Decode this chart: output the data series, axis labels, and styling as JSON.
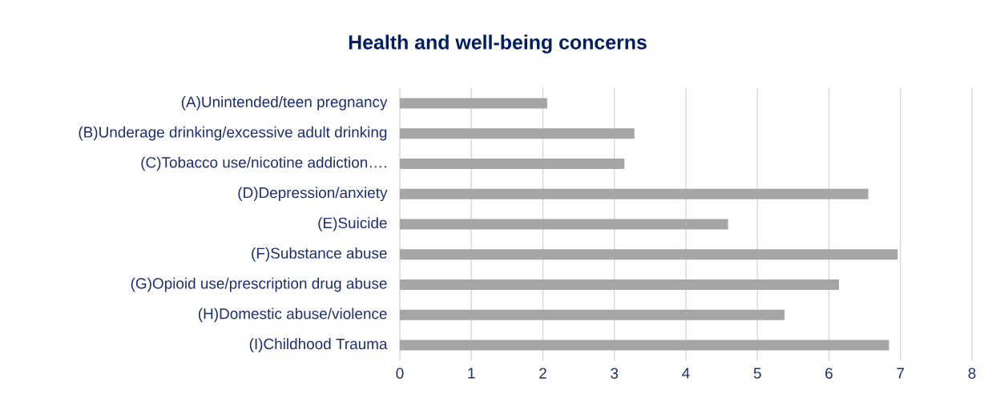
{
  "chart_data": {
    "type": "bar",
    "orientation": "horizontal",
    "title": "Health and well-being concerns",
    "categories": [
      "(A)Unintended/teen pregnancy",
      "(B)Underage drinking/excessive adult drinking",
      "(C)Tobacco use/nicotine addiction….",
      "(D)Depression/anxiety",
      "(E)Suicide",
      "(F)Substance abuse",
      "(G)Opioid use/prescription drug abuse",
      "(H)Domestic abuse/violence",
      "(I)Childhood Trauma"
    ],
    "values": [
      2.06,
      3.28,
      3.14,
      6.55,
      4.59,
      6.96,
      6.14,
      5.38,
      6.84
    ],
    "color": "#a5a5a5",
    "xlim": [
      0,
      8
    ],
    "xticks": [
      0,
      1,
      2,
      3,
      4,
      5,
      6,
      7,
      8
    ],
    "grid": "x"
  }
}
